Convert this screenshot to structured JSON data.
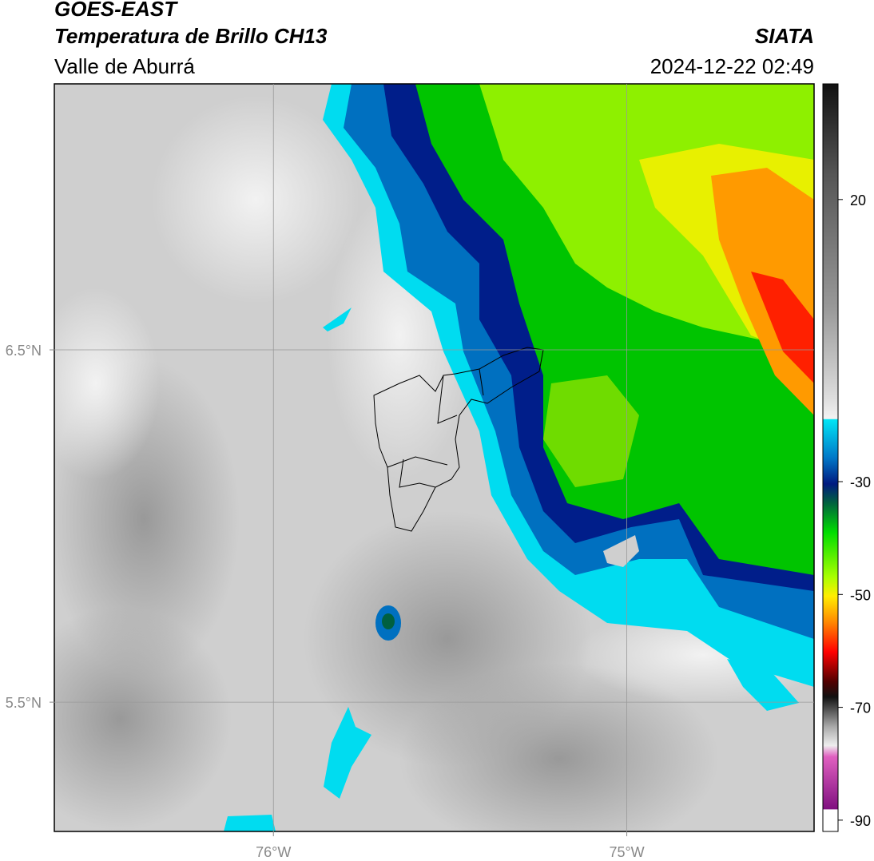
{
  "header": {
    "title": "GOES-EAST",
    "subtitle": "Temperatura de Brillo CH13",
    "region": "Valle de Aburrá",
    "source": "SIATA",
    "datetime": "2024-12-22 02:49"
  },
  "map": {
    "lonlim": [
      -76.62,
      -74.47
    ],
    "latlim": [
      5.133,
      7.255
    ],
    "lonticks": [
      {
        "value": -76,
        "label": "76°W"
      },
      {
        "value": -75,
        "label": "75°W"
      }
    ],
    "latticks": [
      {
        "value": 6.5,
        "label": "6.5°N"
      },
      {
        "value": 5.5,
        "label": "5.5°N"
      }
    ]
  },
  "colorbar": {
    "lim": [
      -92,
      40.5
    ],
    "ticks": [
      20,
      -30,
      -50,
      -70,
      -90
    ]
  }
}
